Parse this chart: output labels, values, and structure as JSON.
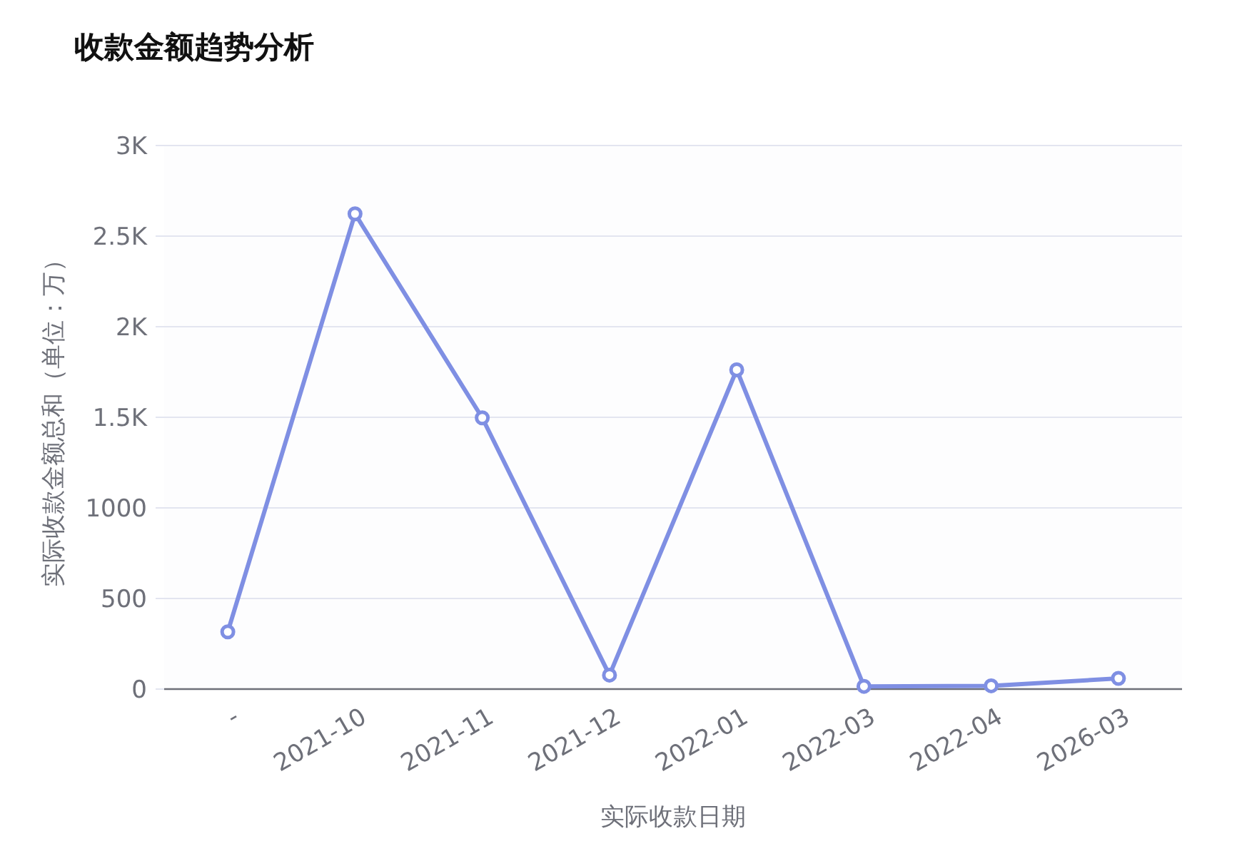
{
  "chart_data": {
    "type": "line",
    "title": "收款金额趋势分析",
    "xlabel": "实际收款日期",
    "ylabel": "实际收款金额总和（单位：万）",
    "categories": [
      "-",
      "2021-10",
      "2021-11",
      "2021-12",
      "2022-01",
      "2022-03",
      "2022-04",
      "2026-03"
    ],
    "series": [
      {
        "color": "#7f8fe3",
        "values": [
          316,
          2623,
          1497,
          77,
          1762,
          15,
          18,
          59
        ]
      }
    ],
    "ylim": [
      0,
      3000
    ],
    "yticks": [
      0,
      500,
      1000,
      {
        "value": 1500,
        "label": "1.5K"
      },
      {
        "value": 2000,
        "label": "2K"
      },
      {
        "value": 2500,
        "label": "2.5K"
      },
      {
        "value": 3000,
        "label": "3K"
      }
    ],
    "grid": "y",
    "marker": "circle",
    "line_style": "solid"
  }
}
